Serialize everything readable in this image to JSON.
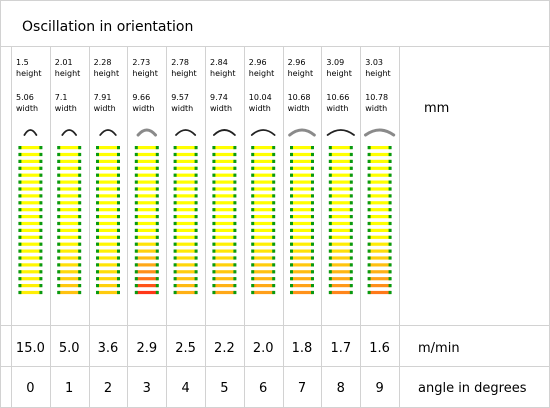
{
  "title": "Oscillation in orientation",
  "dim_unit": "mm",
  "speed_unit": "m/min",
  "angle_label": "angle in degrees",
  "dimension_label_height": "height",
  "dimension_label_width": "width",
  "colors": {
    "grid": "#d2d2d2",
    "yellow": "#ffff00",
    "green": "#0a9a10",
    "orange": "#ff9f1a",
    "red": "#ff2a18"
  },
  "columns": [
    {
      "height": "1.5",
      "width": "5.06",
      "speed": "15.0",
      "angle": "0",
      "strip_intensity": 0.1,
      "profile": "dark"
    },
    {
      "height": "2.01",
      "width": "7.1",
      "speed": "5.0",
      "angle": "1",
      "strip_intensity": 0.35,
      "profile": "dark"
    },
    {
      "height": "2.28",
      "width": "7.91",
      "speed": "3.6",
      "angle": "2",
      "strip_intensity": 0.3,
      "profile": "dark"
    },
    {
      "height": "2.73",
      "width": "9.66",
      "speed": "2.9",
      "angle": "3",
      "strip_intensity": 0.95,
      "profile": "grey"
    },
    {
      "height": "2.78",
      "width": "9.57",
      "speed": "2.5",
      "angle": "4",
      "strip_intensity": 0.45,
      "profile": "dark"
    },
    {
      "height": "2.84",
      "width": "9.74",
      "speed": "2.2",
      "angle": "5",
      "strip_intensity": 0.5,
      "profile": "dark"
    },
    {
      "height": "2.96",
      "width": "10.04",
      "speed": "2.0",
      "angle": "6",
      "strip_intensity": 0.55,
      "profile": "dark"
    },
    {
      "height": "2.96",
      "width": "10.68",
      "speed": "1.8",
      "angle": "7",
      "strip_intensity": 0.6,
      "profile": "grey"
    },
    {
      "height": "3.09",
      "width": "10.66",
      "speed": "1.7",
      "angle": "8",
      "strip_intensity": 0.65,
      "profile": "dark"
    },
    {
      "height": "3.03",
      "width": "10.78",
      "speed": "1.6",
      "angle": "9",
      "strip_intensity": 0.7,
      "profile": "grey"
    }
  ]
}
